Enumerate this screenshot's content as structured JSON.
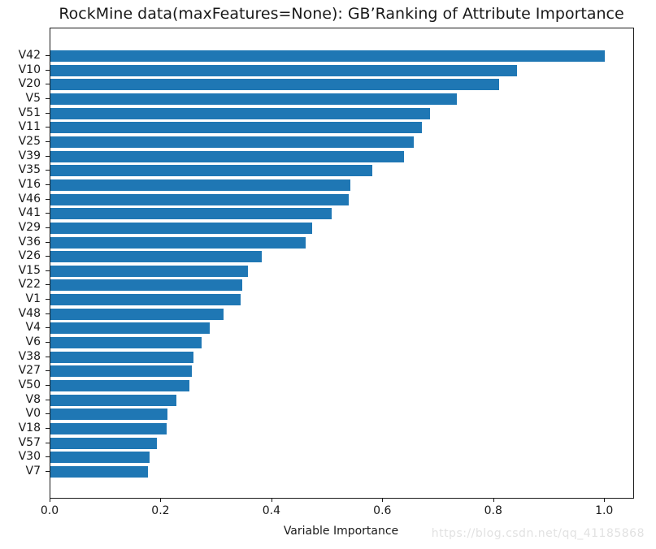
{
  "figure": {
    "watermark": "https://blog.csdn.net/qq_41185868"
  },
  "colors": {
    "bar": "#1f77b4",
    "axis": "#1a1a1a",
    "text": "#1a1a1a",
    "watermark": "#e2e2e2",
    "background": "#ffffff"
  },
  "chart_data": {
    "type": "bar",
    "orientation": "horizontal",
    "title": "RockMine data(maxFeatures=None): GB’Ranking of Attribute Importance",
    "xlabel": "Variable Importance",
    "ylabel": "",
    "categories": [
      "V42",
      "V10",
      "V20",
      "V5",
      "V51",
      "V11",
      "V25",
      "V39",
      "V35",
      "V16",
      "V46",
      "V41",
      "V29",
      "V36",
      "V26",
      "V15",
      "V22",
      "V1",
      "V48",
      "V4",
      "V6",
      "V38",
      "V27",
      "V50",
      "V8",
      "V0",
      "V18",
      "V57",
      "V30",
      "V7"
    ],
    "values": [
      1.0,
      0.842,
      0.809,
      0.733,
      0.685,
      0.67,
      0.655,
      0.638,
      0.581,
      0.541,
      0.538,
      0.507,
      0.472,
      0.46,
      0.381,
      0.356,
      0.346,
      0.343,
      0.312,
      0.287,
      0.273,
      0.258,
      0.255,
      0.251,
      0.227,
      0.211,
      0.21,
      0.192,
      0.179,
      0.176
    ],
    "xlim": [
      0.0,
      1.051
    ],
    "xticks": [
      0.0,
      0.2,
      0.4,
      0.6,
      0.8,
      1.0
    ],
    "xtick_labels": [
      "0.0",
      "0.2",
      "0.4",
      "0.6",
      "0.8",
      "1.0"
    ],
    "bar_color": "#1f77b4",
    "grid": false,
    "legend": "none"
  }
}
